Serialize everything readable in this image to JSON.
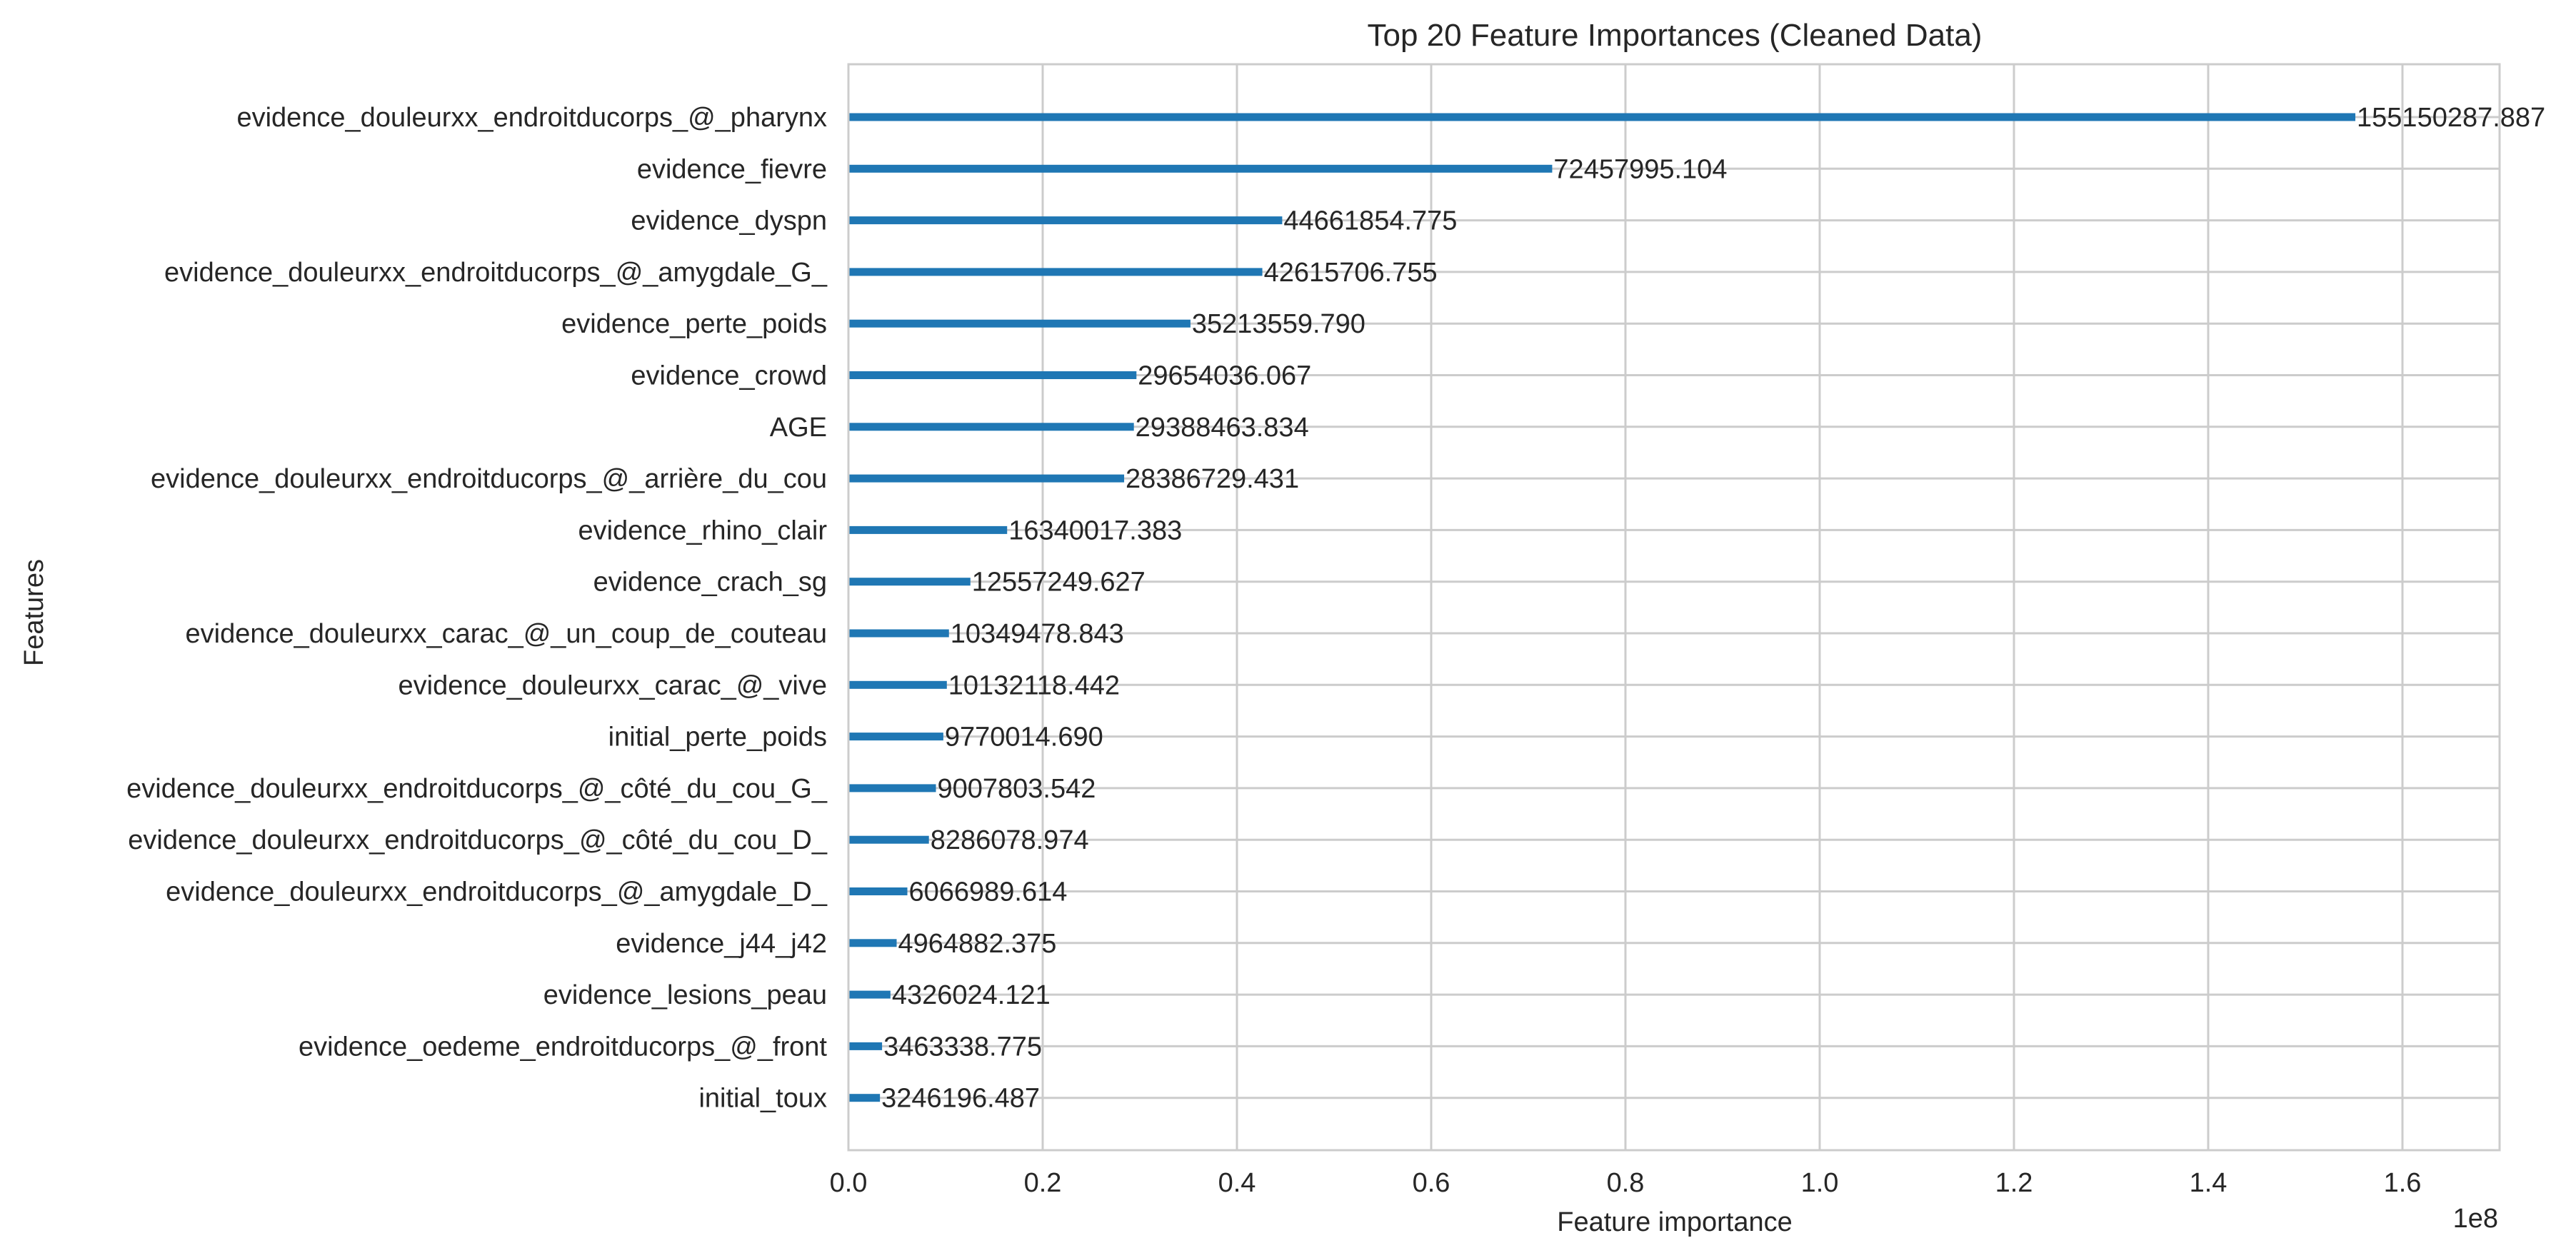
{
  "chart_data": {
    "type": "bar",
    "orientation": "horizontal",
    "title": "Top 20 Feature Importances (Cleaned Data)",
    "xlabel": "Feature importance",
    "ylabel": "Features",
    "x_offset_label": "1e8",
    "xlim": [
      0,
      170000000
    ],
    "xticks": [
      0,
      20000000,
      40000000,
      60000000,
      80000000,
      100000000,
      120000000,
      140000000,
      160000000
    ],
    "xtick_labels": [
      "0.0",
      "0.2",
      "0.4",
      "0.6",
      "0.8",
      "1.0",
      "1.2",
      "1.4",
      "1.6"
    ],
    "grid": true,
    "bar_color": "#1f77b4",
    "grid_color": "#cccccc",
    "categories": [
      "evidence_douleurxx_endroitducorps_@_pharynx",
      "evidence_fievre",
      "evidence_dyspn",
      "evidence_douleurxx_endroitducorps_@_amygdale_G_",
      "evidence_perte_poids",
      "evidence_crowd",
      "AGE",
      "evidence_douleurxx_endroitducorps_@_arrière_du_cou",
      "evidence_rhino_clair",
      "evidence_crach_sg",
      "evidence_douleurxx_carac_@_un_coup_de_couteau",
      "evidence_douleurxx_carac_@_vive",
      "initial_perte_poids",
      "evidence_douleurxx_endroitducorps_@_côté_du_cou_G_",
      "evidence_douleurxx_endroitducorps_@_côté_du_cou_D_",
      "evidence_douleurxx_endroitducorps_@_amygdale_D_",
      "evidence_j44_j42",
      "evidence_lesions_peau",
      "evidence_oedeme_endroitducorps_@_front",
      "initial_toux"
    ],
    "values": [
      155150287.887,
      72457995.104,
      44661854.775,
      42615706.755,
      35213559.79,
      29654036.067,
      29388463.834,
      28386729.431,
      16340017.383,
      12557249.627,
      10349478.843,
      10132118.442,
      9770014.69,
      9007803.542,
      8286078.974,
      6066989.614,
      4964882.375,
      4326024.121,
      3463338.775,
      3246196.487
    ],
    "value_labels": [
      "155150287.887",
      "72457995.104",
      "44661854.775",
      "42615706.755",
      "35213559.790",
      "29654036.067",
      "29388463.834",
      "28386729.431",
      "16340017.383",
      "12557249.627",
      "10349478.843",
      "10132118.442",
      "9770014.690",
      "9007803.542",
      "8286078.974",
      "6066989.614",
      "4964882.375",
      "4326024.121",
      "3463338.775",
      "3246196.487"
    ]
  }
}
